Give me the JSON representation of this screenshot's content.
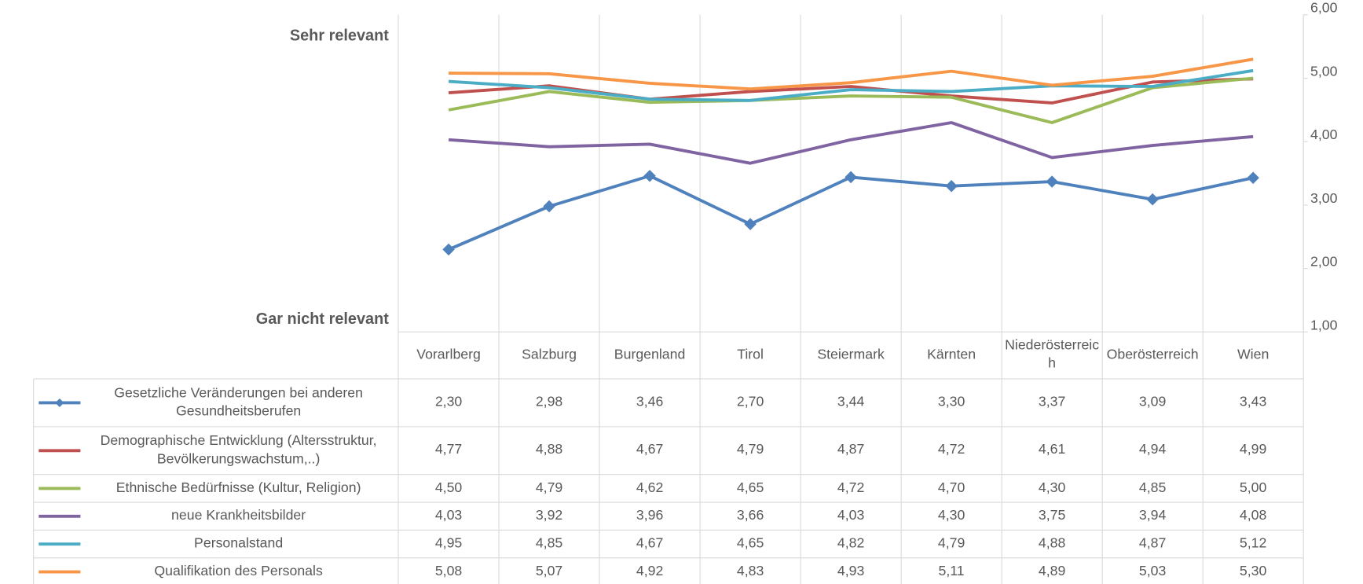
{
  "chart_data": {
    "type": "line",
    "annotations": [
      "Sehr relevant",
      "Gar nicht relevant"
    ],
    "categories": [
      "Vorarlberg",
      "Salzburg",
      "Burgenland",
      "Tirol",
      "Steiermark",
      "Kärnten",
      "Niederösterreich",
      "Oberösterreich",
      "Wien"
    ],
    "series": [
      {
        "name": "Gesetzliche Veränderungen bei anderen Gesundheitsberufen",
        "color": "#4f81bd",
        "marker": "diamond",
        "values": [
          2.3,
          2.98,
          3.46,
          2.7,
          3.44,
          3.3,
          3.37,
          3.09,
          3.43
        ],
        "value_labels": [
          "2,30",
          "2,98",
          "3,46",
          "2,70",
          "3,44",
          "3,30",
          "3,37",
          "3,09",
          "3,43"
        ]
      },
      {
        "name": "Demographische Entwicklung (Altersstruktur, Bevölkerungswachstum,..)",
        "color": "#c0504d",
        "values": [
          4.77,
          4.88,
          4.67,
          4.79,
          4.87,
          4.72,
          4.61,
          4.94,
          4.99
        ],
        "value_labels": [
          "4,77",
          "4,88",
          "4,67",
          "4,79",
          "4,87",
          "4,72",
          "4,61",
          "4,94",
          "4,99"
        ]
      },
      {
        "name": "Ethnische Bedürfnisse (Kultur, Religion)",
        "color": "#9bbb59",
        "values": [
          4.5,
          4.79,
          4.62,
          4.65,
          4.72,
          4.7,
          4.3,
          4.85,
          5.0
        ],
        "value_labels": [
          "4,50",
          "4,79",
          "4,62",
          "4,65",
          "4,72",
          "4,70",
          "4,30",
          "4,85",
          "5,00"
        ]
      },
      {
        "name": "neue Krankheitsbilder",
        "color": "#8064a2",
        "values": [
          4.03,
          3.92,
          3.96,
          3.66,
          4.03,
          4.3,
          3.75,
          3.94,
          4.08
        ],
        "value_labels": [
          "4,03",
          "3,92",
          "3,96",
          "3,66",
          "4,03",
          "4,30",
          "3,75",
          "3,94",
          "4,08"
        ]
      },
      {
        "name": "Personalstand",
        "color": "#4bacc6",
        "values": [
          4.95,
          4.85,
          4.67,
          4.65,
          4.82,
          4.79,
          4.88,
          4.87,
          5.12
        ],
        "value_labels": [
          "4,95",
          "4,85",
          "4,67",
          "4,65",
          "4,82",
          "4,79",
          "4,88",
          "4,87",
          "5,12"
        ]
      },
      {
        "name": "Qualifikation des Personals",
        "color": "#f79646",
        "values": [
          5.08,
          5.07,
          4.92,
          4.83,
          4.93,
          5.11,
          4.89,
          5.03,
          5.3
        ],
        "value_labels": [
          "5,08",
          "5,07",
          "4,92",
          "4,83",
          "4,93",
          "5,11",
          "4,89",
          "5,03",
          "5,30"
        ]
      }
    ],
    "ylim": [
      1,
      6
    ],
    "yticks": [
      {
        "value": 1,
        "label": "1,00"
      },
      {
        "value": 2,
        "label": "2,00"
      },
      {
        "value": 3,
        "label": "3,00"
      },
      {
        "value": 4,
        "label": "4,00"
      },
      {
        "value": 5,
        "label": "5,00"
      },
      {
        "value": 6,
        "label": "6,00"
      }
    ],
    "yaxis_side": "right",
    "grid": true
  }
}
